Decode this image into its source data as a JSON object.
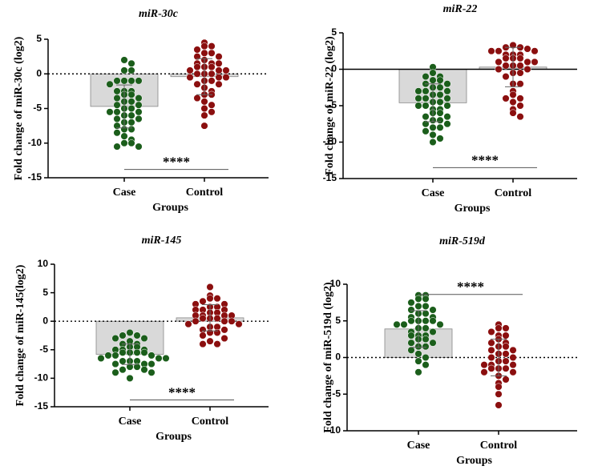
{
  "chart_data": [
    {
      "type": "dotplot",
      "title": "miR-30c",
      "ylabel": "Fold change of miR-30c (log2)",
      "xlabel": "Groups",
      "categories": [
        "Case",
        "Control"
      ],
      "colors": [
        "#1b5e1b",
        "#8b0f0f"
      ],
      "bar_color": "#d9d9d9",
      "zero_line": "dotted",
      "means": [
        -4.7,
        -0.4
      ],
      "sd": [
        3.1,
        2.6
      ],
      "points": [
        [
          2,
          1.5,
          0.5,
          0.5,
          -1,
          -1,
          -1,
          -1,
          -1.5,
          -2.5,
          -2.5,
          -2.5,
          -3,
          -3,
          -3.5,
          -3.5,
          -4,
          -4,
          -4.5,
          -4.5,
          -5,
          -5,
          -5.5,
          -5.5,
          -5.5,
          -6,
          -6,
          -6.5,
          -6.5,
          -7,
          -7,
          -7.5,
          -8,
          -8,
          -8.5,
          -9,
          -9.5,
          -10,
          -10,
          -10.5,
          -10.5
        ],
        [
          4.5,
          4,
          4,
          3.5,
          3,
          3,
          2.5,
          2.5,
          2,
          1.5,
          1.5,
          1.5,
          1,
          1,
          1,
          0.5,
          0.5,
          0.5,
          0,
          0,
          0,
          -0.5,
          -0.5,
          -0.5,
          -1,
          -1,
          -1.5,
          -1.5,
          -2,
          -2.5,
          -3,
          -3,
          -3.5,
          -4,
          -4.5,
          -5,
          -5.5,
          -6,
          -7.5
        ]
      ],
      "ylim": [
        -15,
        5
      ],
      "yticks": [
        -15,
        -10,
        -5,
        0,
        5
      ],
      "significance": {
        "label": "****",
        "y": -13.8
      }
    },
    {
      "type": "dotplot",
      "title": "miR-22",
      "ylabel": "Fold change of miR-22 (log2)",
      "xlabel": "Groups",
      "categories": [
        "Case",
        "Control"
      ],
      "colors": [
        "#1b5e1b",
        "#8b0f0f"
      ],
      "bar_color": "#d9d9d9",
      "zero_line": "solid",
      "means": [
        -4.6,
        0.3
      ],
      "sd": [
        2.6,
        2.7
      ],
      "points": [
        [
          0.3,
          -0.5,
          -1,
          -1,
          -1.5,
          -1.5,
          -2,
          -2,
          -2.5,
          -2.5,
          -3,
          -3,
          -3,
          -3.5,
          -3.5,
          -4,
          -4,
          -4,
          -4.5,
          -4.5,
          -5,
          -5,
          -5,
          -5.5,
          -5.5,
          -6,
          -6,
          -6.5,
          -6.5,
          -7,
          -7,
          -7.5,
          -7.5,
          -8,
          -8,
          -8.5,
          -9,
          -9.5,
          -10
        ],
        [
          3.3,
          3,
          3,
          2.8,
          2.5,
          2.5,
          2.5,
          2,
          2,
          2,
          1.5,
          1.5,
          1.5,
          1,
          1,
          1,
          0.5,
          0.5,
          0.5,
          0,
          0,
          -0.5,
          -0.5,
          -1,
          -2,
          -2,
          -3,
          -3.5,
          -4,
          -4,
          -4.5,
          -5,
          -5.5,
          -6,
          -6.5
        ]
      ],
      "ylim": [
        -15,
        5
      ],
      "yticks": [
        -15,
        -10,
        -5,
        0,
        5
      ],
      "significance": {
        "label": "****",
        "y": -13.5
      }
    },
    {
      "type": "dotplot",
      "title": "miR-145",
      "ylabel": "Fold change of miR-145(log2)",
      "xlabel": "Groups",
      "categories": [
        "Case",
        "Control"
      ],
      "colors": [
        "#1b5e1b",
        "#8b0f0f"
      ],
      "bar_color": "#d9d9d9",
      "zero_line": "dotted",
      "means": [
        -5.8,
        0.6
      ],
      "sd": [
        1.8,
        2.3
      ],
      "points": [
        [
          -2,
          -2.5,
          -2.5,
          -3,
          -3,
          -3.5,
          -4,
          -4,
          -4.5,
          -4.5,
          -5,
          -5,
          -5,
          -5.5,
          -5.5,
          -5.5,
          -5.5,
          -6,
          -6,
          -6,
          -6.5,
          -6.5,
          -6.5,
          -7,
          -7,
          -7,
          -7.5,
          -7.5,
          -7.5,
          -8,
          -8,
          -8.5,
          -8.5,
          -9,
          -9,
          -10
        ],
        [
          6,
          4.5,
          4,
          4,
          3.5,
          3,
          3,
          2.5,
          2.5,
          2,
          2,
          2,
          1.5,
          1.5,
          1,
          1,
          1,
          1,
          0.5,
          0.5,
          0.5,
          0,
          0,
          0,
          -0.5,
          -0.5,
          -1,
          -1,
          -1.5,
          -1.5,
          -2,
          -2,
          -2.5,
          -3,
          -3.5,
          -4,
          -4
        ]
      ],
      "ylim": [
        -15,
        10
      ],
      "yticks": [
        -15,
        -10,
        -5,
        0,
        5,
        10
      ],
      "significance": {
        "label": "****",
        "y": -13.8
      }
    },
    {
      "type": "dotplot",
      "title": "miR-519d",
      "ylabel": "Fold change of miR-519d (log2)",
      "xlabel": "Groups",
      "categories": [
        "Case",
        "Control"
      ],
      "colors": [
        "#1b5e1b",
        "#8b0f0f"
      ],
      "bar_color": "#d9d9d9",
      "zero_line": "dotted",
      "means": [
        3.9,
        0
      ],
      "sd": [
        2.5,
        2.5
      ],
      "points": [
        [
          8.5,
          8.5,
          8,
          8,
          7.5,
          7,
          7,
          6.5,
          6.5,
          6,
          6,
          5.5,
          5.5,
          5,
          5,
          5,
          5,
          4.5,
          4.5,
          4.5,
          4,
          4,
          3.5,
          3.5,
          3,
          3,
          3,
          2.5,
          2.5,
          2,
          2,
          1.5,
          1.5,
          1,
          0.5,
          0,
          -0.5,
          -1,
          -2
        ],
        [
          4.5,
          4,
          4,
          3.5,
          3,
          3,
          2.5,
          2,
          2,
          1.5,
          1.5,
          1,
          1,
          0.5,
          0.5,
          0,
          0,
          -0.5,
          -0.5,
          -1,
          -1,
          -1,
          -1.5,
          -1.5,
          -1.5,
          -2,
          -2,
          -2.5,
          -3,
          -3.5,
          -4,
          -5,
          -6.5
        ]
      ],
      "ylim": [
        -10,
        10
      ],
      "yticks": [
        -10,
        -5,
        0,
        5,
        10
      ],
      "significance": {
        "label": "****",
        "y": 8.6
      }
    }
  ]
}
